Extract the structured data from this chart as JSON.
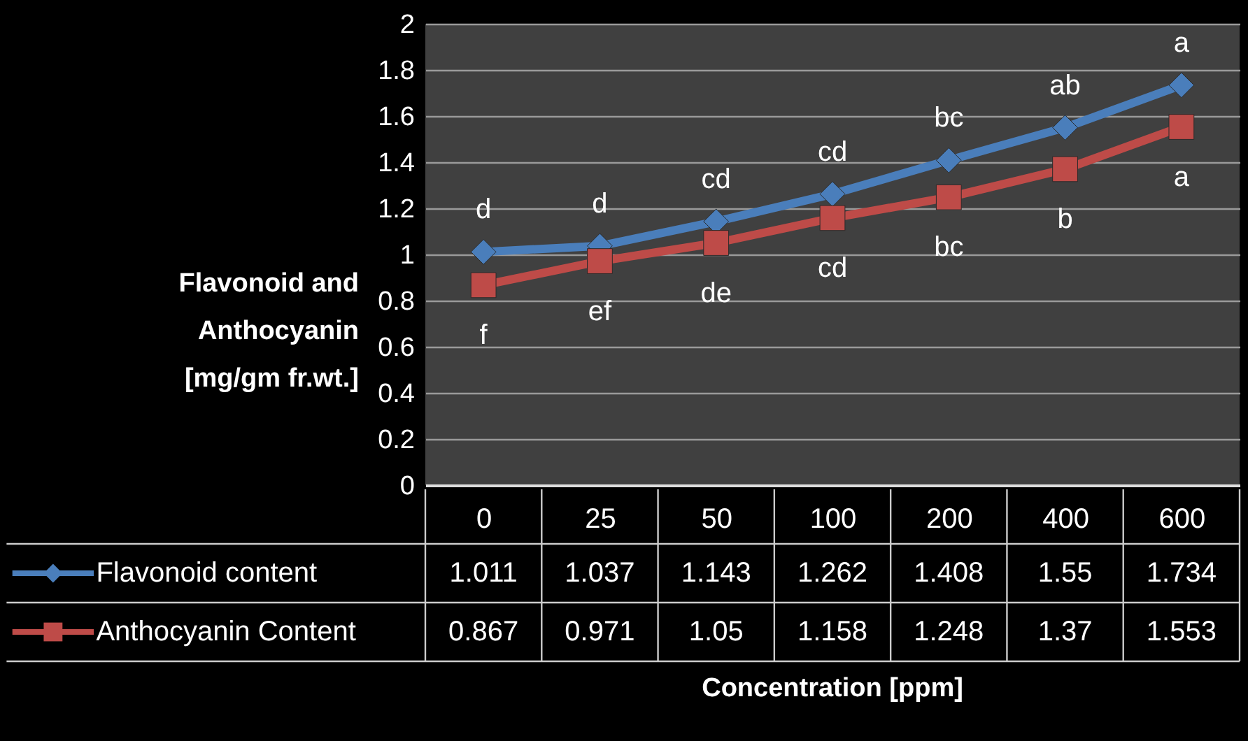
{
  "chart_data": {
    "type": "line",
    "ylabel": "Flavonoid and\nAnthocyanin\n[mg/gm fr.wt.]",
    "categories": [
      "0",
      "25",
      "50",
      "100",
      "200",
      "400",
      "600"
    ],
    "series": [
      {
        "name": "Flavonoid content",
        "color": "#4a7ebb",
        "marker": "diamond",
        "values": [
          1.011,
          1.037,
          1.143,
          1.262,
          1.408,
          1.55,
          1.734
        ]
      },
      {
        "name": "Anthocyanin Content",
        "color": "#be4b48",
        "marker": "square",
        "values": [
          0.867,
          0.971,
          1.05,
          1.158,
          1.248,
          1.37,
          1.553
        ]
      }
    ],
    "ylim": [
      0,
      2
    ],
    "yticks": [
      0,
      0.2,
      0.4,
      0.6,
      0.8,
      1,
      1.2,
      1.4,
      1.6,
      1.8,
      2
    ],
    "grid": "y",
    "legend": "bottom left",
    "data_labels": true,
    "line_style": "solid",
    "annotations": [
      {
        "text": "d",
        "x": "0",
        "y": 1.011
      },
      {
        "text": "d",
        "x": "25",
        "y": 1.037
      },
      {
        "text": "cd",
        "x": "50",
        "y": 1.143
      },
      {
        "text": "cd",
        "x": "100",
        "y": 1.262
      },
      {
        "text": "bc",
        "x": "200",
        "y": 1.408
      },
      {
        "text": "ab",
        "x": "400",
        "y": 1.55
      },
      {
        "text": "a",
        "x": "600",
        "y": 1.734
      },
      "Concentration [ppm]",
      {
        "text": "f",
        "x": "0",
        "y": 0.867
      },
      {
        "text": "ef",
        "x": "25",
        "y": 0.971
      },
      {
        "text": "de",
        "x": "50",
        "y": 1.05
      },
      {
        "text": "cd",
        "x": "100",
        "y": 1.158
      },
      {
        "text": "bc",
        "x": "200",
        "y": 1.248
      },
      {
        "text": "b",
        "x": "400",
        "y": 1.37
      },
      {
        "text": "a",
        "x": "600",
        "y": 1.553
      }
    ]
  }
}
